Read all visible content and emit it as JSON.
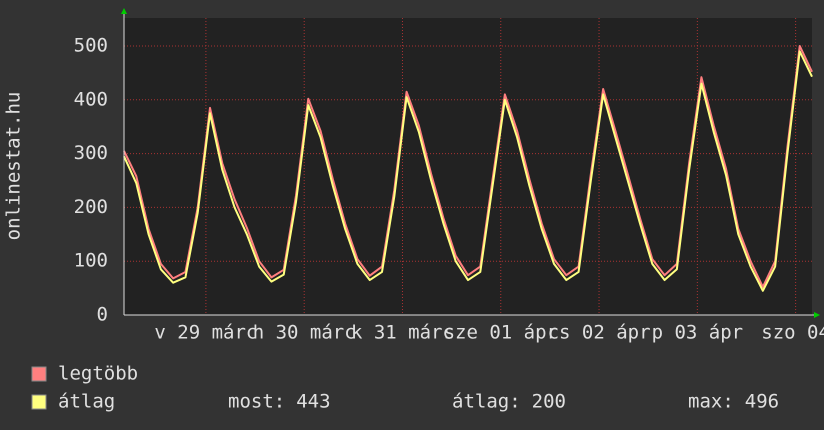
{
  "chart_data": {
    "type": "line",
    "y_label": "onlinestat.hu",
    "x": [
      0,
      3,
      6,
      9,
      12,
      15,
      18,
      21,
      24,
      27,
      30,
      33,
      36,
      39,
      42,
      45,
      48,
      51,
      54,
      57,
      60,
      63,
      66,
      69,
      72,
      75,
      78,
      81,
      84,
      87,
      90,
      93,
      96,
      99,
      102,
      105,
      108,
      111,
      114,
      117,
      120,
      123,
      126,
      129,
      132,
      135,
      138,
      141,
      144,
      147,
      150,
      153,
      156,
      159,
      162,
      165,
      168
    ],
    "series": [
      {
        "name": "legtöbb",
        "color": "#ff7f7f",
        "values": [
          305,
          258,
          160,
          95,
          68,
          80,
          200,
          385,
          282,
          215,
          162,
          100,
          70,
          84,
          222,
          402,
          342,
          252,
          170,
          104,
          73,
          90,
          232,
          415,
          352,
          262,
          180,
          110,
          74,
          90,
          252,
          410,
          342,
          252,
          170,
          104,
          74,
          90,
          262,
          420,
          342,
          262,
          180,
          104,
          74,
          95,
          282,
          442,
          352,
          272,
          160,
          100,
          52,
          100,
          312,
          500,
          452
        ]
      },
      {
        "name": "átlag",
        "color": "#ffff80",
        "values": [
          295,
          245,
          150,
          85,
          60,
          70,
          190,
          375,
          270,
          200,
          150,
          90,
          62,
          75,
          210,
          390,
          330,
          240,
          160,
          95,
          65,
          80,
          220,
          405,
          340,
          250,
          170,
          100,
          65,
          80,
          240,
          400,
          330,
          240,
          160,
          95,
          65,
          80,
          250,
          410,
          330,
          250,
          170,
          95,
          65,
          85,
          270,
          430,
          340,
          260,
          150,
          90,
          45,
          90,
          300,
          490,
          443
        ]
      }
    ],
    "xlim": [
      0,
      168
    ],
    "xticks": [
      {
        "value": 20,
        "label": "v 29 márc"
      },
      {
        "value": 44,
        "label": "h 30 márc"
      },
      {
        "value": 68,
        "label": "k 31 márc"
      },
      {
        "value": 92,
        "label": "sze 01 ápr"
      },
      {
        "value": 116,
        "label": "cs 02 ápr"
      },
      {
        "value": 140,
        "label": "p 03 ápr"
      },
      {
        "value": 164,
        "label": "szo 04"
      }
    ],
    "ylim": [
      0,
      552
    ],
    "yticks": [
      0,
      100,
      200,
      300,
      400,
      500
    ],
    "grid": true,
    "stats": [
      {
        "label": "most:",
        "value": 443
      },
      {
        "label": "átlag:",
        "value": 200
      },
      {
        "label": "max:",
        "value": 496
      }
    ]
  }
}
